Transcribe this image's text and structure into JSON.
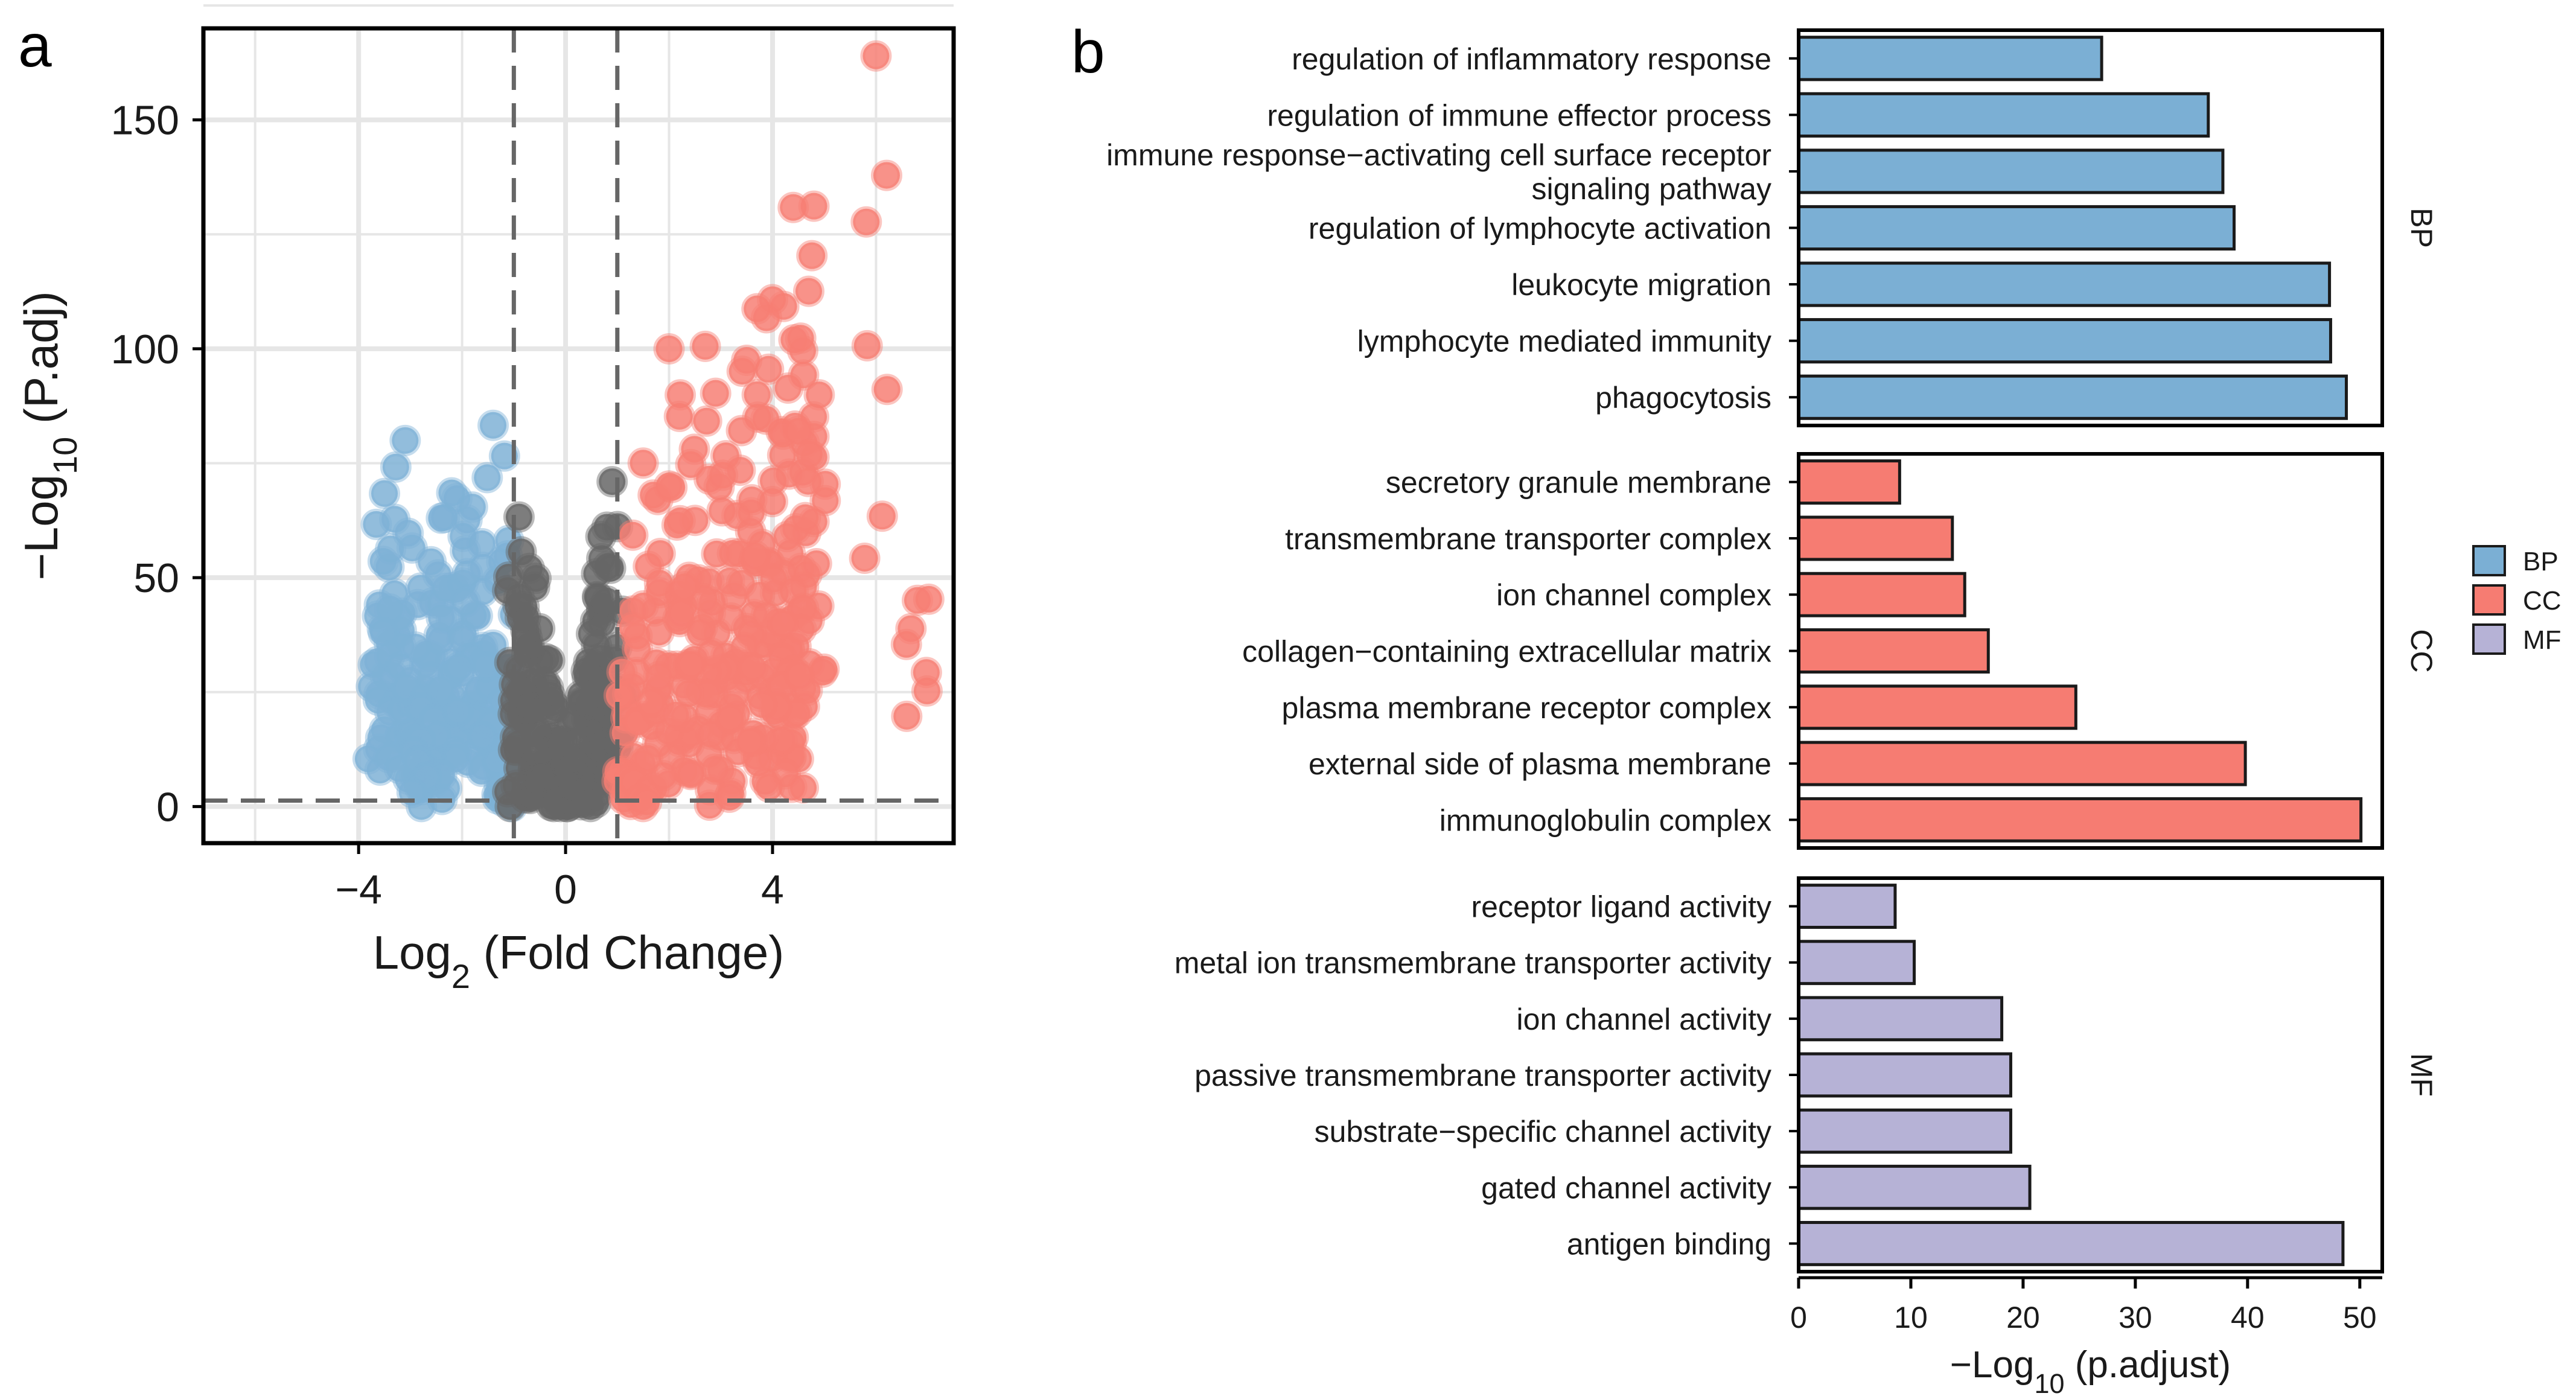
{
  "panels": {
    "a": "a",
    "b": "b"
  },
  "chart_data": [
    {
      "panel": "a",
      "type": "scatter",
      "xlabel": "Log2 (Fold Change)",
      "ylabel": "−Log10 (P.adj)",
      "xlim": [
        -7,
        7.5
      ],
      "ylim": [
        -8,
        170
      ],
      "xticks": [
        -4,
        0,
        4
      ],
      "yticks": [
        0,
        50,
        100,
        150
      ],
      "grid": true,
      "thresholds": {
        "log2fc": [
          -1,
          1
        ],
        "neg_log10_padj": 1.3
      },
      "colors": {
        "down": "#7fb2d6",
        "not_significant": "#666666",
        "up": "#f77f74"
      },
      "series": [
        {
          "group": "down",
          "points": [
            [
              -3.5,
              70
            ],
            [
              -3.3,
              64
            ],
            [
              -3.1,
              77
            ],
            [
              -3.6,
              46
            ],
            [
              -3.4,
              44
            ],
            [
              -3.4,
              30
            ],
            [
              -3.2,
              26
            ],
            [
              -3.0,
              28
            ],
            [
              -2.8,
              45
            ],
            [
              -2.6,
              56
            ],
            [
              -2.4,
              63
            ],
            [
              -2.2,
              66
            ],
            [
              -2.1,
              70
            ],
            [
              -1.8,
              65
            ],
            [
              -1.4,
              81
            ],
            [
              -1.1,
              61
            ],
            [
              -2.9,
              34
            ],
            [
              -2.7,
              22
            ],
            [
              -2.5,
              15
            ],
            [
              -2.4,
              40
            ],
            [
              -2.0,
              35
            ],
            [
              -1.7,
              28
            ],
            [
              -1.5,
              19
            ],
            [
              -1.3,
              12
            ],
            [
              -1.2,
              5
            ],
            [
              -1.6,
              45
            ],
            [
              -1.9,
              50
            ],
            [
              -2.3,
              27
            ],
            [
              -2.6,
              8
            ],
            [
              -1.1,
              30
            ],
            [
              -1.4,
              38
            ],
            [
              -2.8,
              12
            ]
          ]
        },
        {
          "group": "not_significant",
          "points": [
            [
              -0.9,
              62
            ],
            [
              -0.7,
              55
            ],
            [
              -0.6,
              46
            ],
            [
              -0.5,
              38
            ],
            [
              -0.4,
              30
            ],
            [
              -0.3,
              22
            ],
            [
              -0.2,
              14
            ],
            [
              -0.1,
              6
            ],
            [
              0.0,
              1
            ],
            [
              0.1,
              5
            ],
            [
              0.2,
              12
            ],
            [
              0.3,
              20
            ],
            [
              0.4,
              30
            ],
            [
              0.5,
              40
            ],
            [
              0.6,
              48
            ],
            [
              0.7,
              55
            ],
            [
              0.8,
              63
            ],
            [
              0.9,
              68
            ],
            [
              -0.8,
              20
            ],
            [
              -0.9,
              10
            ],
            [
              -0.5,
              4
            ],
            [
              0.3,
              2
            ],
            [
              0.5,
              8
            ],
            [
              0.7,
              15
            ],
            [
              0.9,
              25
            ],
            [
              -0.7,
              35
            ],
            [
              0.8,
              42
            ],
            [
              -0.9,
              48
            ]
          ]
        },
        {
          "group": "up",
          "points": [
            [
              6.0,
              161
            ],
            [
              6.8,
              47
            ],
            [
              4.8,
              132
            ],
            [
              4.4,
              128
            ],
            [
              4.0,
              113
            ],
            [
              4.7,
              113
            ],
            [
              3.7,
              106
            ],
            [
              3.5,
              100
            ],
            [
              2.0,
              100
            ],
            [
              2.7,
              98
            ],
            [
              4.6,
              97
            ],
            [
              4.3,
              91
            ],
            [
              2.9,
              88
            ],
            [
              3.4,
              85
            ],
            [
              4.8,
              80
            ],
            [
              4.5,
              80
            ],
            [
              1.5,
              78
            ],
            [
              2.2,
              84
            ],
            [
              3.1,
              75
            ],
            [
              3.6,
              70
            ],
            [
              4.0,
              65
            ],
            [
              3.8,
              56
            ],
            [
              4.4,
              50
            ],
            [
              4.2,
              38
            ],
            [
              4.3,
              28
            ],
            [
              4.4,
              18
            ],
            [
              3.8,
              20
            ],
            [
              3.2,
              30
            ],
            [
              2.8,
              45
            ],
            [
              2.5,
              60
            ],
            [
              2.0,
              70
            ],
            [
              1.6,
              55
            ],
            [
              1.3,
              40
            ],
            [
              1.2,
              25
            ],
            [
              1.1,
              10
            ],
            [
              1.5,
              4
            ],
            [
              2.2,
              15
            ],
            [
              3.0,
              10
            ],
            [
              2.6,
              35
            ],
            [
              3.4,
              50
            ],
            [
              1.8,
              30
            ],
            [
              2.3,
              45
            ]
          ]
        }
      ]
    },
    {
      "panel": "b",
      "type": "bar",
      "orientation": "horizontal",
      "xlabel": "−Log10 (p.adjust)",
      "xlim": [
        0,
        52
      ],
      "xticks": [
        0,
        10,
        20,
        30,
        40,
        50
      ],
      "legend": {
        "placement": "right",
        "items": [
          "BP",
          "CC",
          "MF"
        ]
      },
      "colors": {
        "BP": "#7bafd4",
        "CC": "#f67c72",
        "MF": "#b6b2d6"
      },
      "groups": [
        {
          "name": "BP",
          "categories": [
            "regulation of inflammatory response",
            "regulation of immune effector process",
            "immune response−activating cell surface receptor signaling pathway",
            "regulation of lymphocyte activation",
            "leukocyte migration",
            "lymphocyte mediated immunity",
            "phagocytosis"
          ],
          "label_lines": [
            [
              "regulation of inflammatory response"
            ],
            [
              "regulation of immune effector process"
            ],
            [
              "immune response−activating cell surface receptor",
              "signaling pathway"
            ],
            [
              "regulation of lymphocyte activation"
            ],
            [
              "leukocyte migration"
            ],
            [
              "lymphocyte mediated immunity"
            ],
            [
              "phagocytosis"
            ]
          ],
          "values": [
            27,
            36.5,
            37.8,
            38.8,
            47.3,
            47.4,
            48.8
          ]
        },
        {
          "name": "CC",
          "categories": [
            "secretory granule membrane",
            "transmembrane transporter complex",
            "ion channel complex",
            "collagen−containing extracellular matrix",
            "plasma membrane receptor complex",
            "external side of plasma membrane",
            "immunoglobulin complex"
          ],
          "label_lines": [
            [
              "secretory granule membrane"
            ],
            [
              "transmembrane transporter complex"
            ],
            [
              "ion channel complex"
            ],
            [
              "collagen−containing extracellular matrix"
            ],
            [
              "plasma membrane receptor complex"
            ],
            [
              "external side of plasma membrane"
            ],
            [
              "immunoglobulin complex"
            ]
          ],
          "values": [
            9,
            13.7,
            14.8,
            16.9,
            24.7,
            39.8,
            50.1
          ]
        },
        {
          "name": "MF",
          "categories": [
            "receptor ligand activity",
            "metal ion transmembrane transporter activity",
            "ion channel activity",
            "passive transmembrane transporter activity",
            "substrate−specific channel activity",
            "gated channel activity",
            "antigen binding"
          ],
          "label_lines": [
            [
              "receptor ligand activity"
            ],
            [
              "metal ion transmembrane transporter activity"
            ],
            [
              "ion channel activity"
            ],
            [
              "passive transmembrane transporter activity"
            ],
            [
              "substrate−specific channel activity"
            ],
            [
              "gated channel activity"
            ],
            [
              "antigen binding"
            ]
          ],
          "values": [
            8.6,
            10.3,
            18.1,
            18.9,
            18.9,
            20.6,
            48.5
          ]
        }
      ]
    }
  ]
}
